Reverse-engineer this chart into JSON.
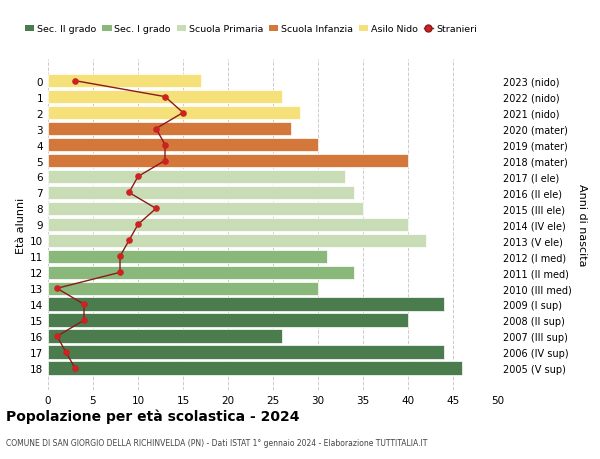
{
  "ages": [
    0,
    1,
    2,
    3,
    4,
    5,
    6,
    7,
    8,
    9,
    10,
    11,
    12,
    13,
    14,
    15,
    16,
    17,
    18
  ],
  "years": [
    "2023 (nido)",
    "2022 (nido)",
    "2021 (nido)",
    "2020 (mater)",
    "2019 (mater)",
    "2018 (mater)",
    "2017 (I ele)",
    "2016 (II ele)",
    "2015 (III ele)",
    "2014 (IV ele)",
    "2013 (V ele)",
    "2012 (I med)",
    "2011 (II med)",
    "2010 (III med)",
    "2009 (I sup)",
    "2008 (II sup)",
    "2007 (III sup)",
    "2006 (IV sup)",
    "2005 (V sup)"
  ],
  "bar_values": [
    17,
    26,
    28,
    27,
    30,
    40,
    33,
    34,
    35,
    40,
    42,
    31,
    34,
    30,
    44,
    40,
    26,
    44,
    46
  ],
  "bar_colors": [
    "#f5e07a",
    "#f5e07a",
    "#f5e07a",
    "#d4773a",
    "#d4773a",
    "#d4773a",
    "#c8ddb5",
    "#c8ddb5",
    "#c8ddb5",
    "#c8ddb5",
    "#c8ddb5",
    "#8ab87a",
    "#8ab87a",
    "#8ab87a",
    "#4a7c4e",
    "#4a7c4e",
    "#4a7c4e",
    "#4a7c4e",
    "#4a7c4e"
  ],
  "stranieri_values": [
    3,
    13,
    15,
    12,
    13,
    13,
    10,
    9,
    12,
    10,
    9,
    8,
    8,
    1,
    4,
    4,
    1,
    2,
    3
  ],
  "legend_labels": [
    "Sec. II grado",
    "Sec. I grado",
    "Scuola Primaria",
    "Scuola Infanzia",
    "Asilo Nido",
    "Stranieri"
  ],
  "legend_colors": [
    "#4a7c4e",
    "#8ab87a",
    "#c8ddb5",
    "#d4773a",
    "#f5e07a",
    "#cc2222"
  ],
  "ylabel_left": "Età alunni",
  "ylabel_right": "Anni di nascita",
  "title": "Popolazione per età scolastica - 2024",
  "subtitle": "COMUNE DI SAN GIORGIO DELLA RICHINVELDA (PN) - Dati ISTAT 1° gennaio 2024 - Elaborazione TUTTITALIA.IT",
  "xlim": [
    0,
    50
  ],
  "xticks": [
    0,
    5,
    10,
    15,
    20,
    25,
    30,
    35,
    40,
    45,
    50
  ],
  "bg_color": "#ffffff",
  "grid_color": "#cccccc",
  "line_color": "#8b1a1a",
  "dot_color": "#cc2222"
}
